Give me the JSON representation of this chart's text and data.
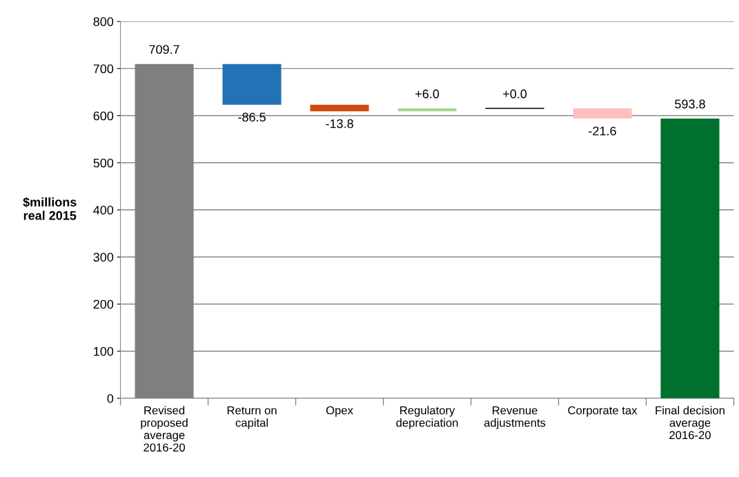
{
  "chart_data": {
    "type": "bar",
    "ylabel": "$millions\nreal 2015",
    "categories": [
      "Revised proposed average 2016-20",
      "Return on capital",
      "Opex",
      "Regulatory depreciation",
      "Revenue adjustments",
      "Corporate tax",
      "Final decision average 2016-20"
    ],
    "values": [
      709.7,
      -86.5,
      -13.8,
      6.0,
      0.0,
      -21.6,
      593.8
    ],
    "base": [
      0,
      709.7,
      623.2,
      609.4,
      615.4,
      615.4,
      0
    ],
    "colors": [
      "#7f7f7f",
      "#2272b5",
      "#cc4a0a",
      "#a8d890",
      "#000000",
      "#ffbfbf",
      "#00702f"
    ],
    "value_labels": [
      "709.7",
      "-86.5",
      "-13.8",
      "+6.0",
      "+0.0",
      "-21.6",
      "593.8"
    ],
    "ylim": [
      0,
      800
    ],
    "yticks": [
      0,
      100,
      200,
      300,
      400,
      500,
      600,
      700,
      800
    ],
    "grid": "y",
    "legend": false
  }
}
